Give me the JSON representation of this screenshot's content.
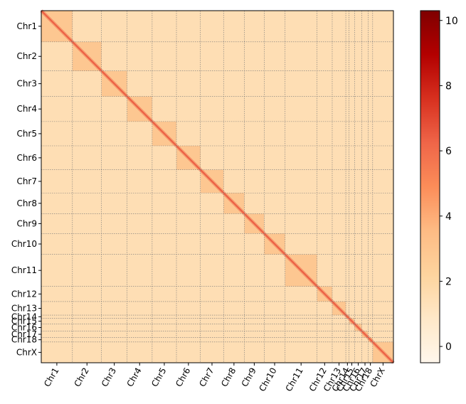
{
  "chart_data": {
    "type": "heatmap",
    "title": "",
    "xlabel": "",
    "ylabel": "",
    "chromosomes": [
      {
        "name": "Chr1",
        "size": 195
      },
      {
        "name": "Chr2",
        "size": 182
      },
      {
        "name": "Chr3",
        "size": 160
      },
      {
        "name": "Chr4",
        "size": 157
      },
      {
        "name": "Chr5",
        "size": 152
      },
      {
        "name": "Chr6",
        "size": 150
      },
      {
        "name": "Chr7",
        "size": 145
      },
      {
        "name": "Chr8",
        "size": 130
      },
      {
        "name": "Chr9",
        "size": 124
      },
      {
        "name": "Chr10",
        "size": 131
      },
      {
        "name": "Chr11",
        "size": 200
      },
      {
        "name": "Chr12",
        "size": 95
      },
      {
        "name": "Chr13",
        "size": 85
      },
      {
        "name": "Chr14",
        "size": 20
      },
      {
        "name": "Chr15",
        "size": 35
      },
      {
        "name": "Chr16",
        "size": 45
      },
      {
        "name": "Chr17",
        "size": 40
      },
      {
        "name": "Chr18",
        "size": 28
      },
      {
        "name": "ChrX",
        "size": 130
      }
    ],
    "colorbar": {
      "min": -0.5,
      "max": 10.3,
      "ticks": [
        0,
        2,
        4,
        6,
        8,
        10
      ],
      "colormap": "OrRd",
      "colors": [
        "#fff7ec",
        "#fee8c8",
        "#fdd49e",
        "#fdbb84",
        "#fc8d59",
        "#ef6548",
        "#d7301f",
        "#b30000",
        "#7f0000"
      ]
    },
    "values": {
      "background": 1.5,
      "intra_chromosome": 2.9,
      "diagonal_peak": 6.5
    },
    "grid": true,
    "grid_style": "dotted",
    "x_tick_rotation": 60
  }
}
